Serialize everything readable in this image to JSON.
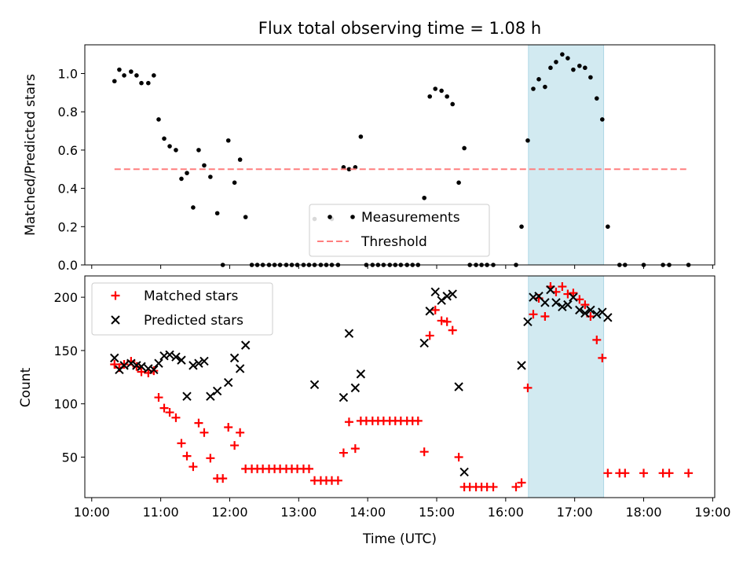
{
  "chart_data": [
    {
      "type": "scatter",
      "title": "Flux total observing time = 1.08 h",
      "xlabel": "",
      "ylabel": "Matched/Predicted stars",
      "xlim": [
        9.9,
        19.03
      ],
      "ylim": [
        0,
        1.15
      ],
      "yticks": [
        0.0,
        0.2,
        0.4,
        0.6,
        0.8,
        1.0
      ],
      "ytick_labels": [
        "0.0",
        "0.2",
        "0.4",
        "0.6",
        "0.8",
        "1.0"
      ],
      "highlight_span": [
        16.33,
        17.42
      ],
      "highlight_color": "#add8e6",
      "legend": {
        "placement": "lower-center"
      },
      "series": [
        {
          "name": "Measurements",
          "marker": "dot",
          "color": "#000000",
          "points": [
            [
              10.33,
              0.96
            ],
            [
              10.4,
              1.02
            ],
            [
              10.47,
              0.99
            ],
            [
              10.57,
              1.01
            ],
            [
              10.65,
              0.99
            ],
            [
              10.72,
              0.95
            ],
            [
              10.82,
              0.95
            ],
            [
              10.9,
              0.99
            ],
            [
              10.97,
              0.76
            ],
            [
              11.05,
              0.66
            ],
            [
              11.13,
              0.62
            ],
            [
              11.22,
              0.6
            ],
            [
              11.3,
              0.45
            ],
            [
              11.38,
              0.48
            ],
            [
              11.47,
              0.3
            ],
            [
              11.55,
              0.6
            ],
            [
              11.63,
              0.52
            ],
            [
              11.72,
              0.46
            ],
            [
              11.82,
              0.27
            ],
            [
              11.9,
              0.0
            ],
            [
              11.98,
              0.65
            ],
            [
              12.07,
              0.43
            ],
            [
              12.15,
              0.55
            ],
            [
              12.23,
              0.25
            ],
            [
              12.32,
              0.0
            ],
            [
              12.4,
              0.0
            ],
            [
              12.48,
              0.0
            ],
            [
              12.57,
              0.0
            ],
            [
              12.65,
              0.0
            ],
            [
              12.73,
              0.0
            ],
            [
              12.82,
              0.0
            ],
            [
              12.9,
              0.0
            ],
            [
              12.98,
              0.0
            ],
            [
              13.07,
              0.0
            ],
            [
              13.15,
              0.0
            ],
            [
              13.23,
              0.0
            ],
            [
              13.23,
              0.24
            ],
            [
              13.32,
              0.0
            ],
            [
              13.4,
              0.0
            ],
            [
              13.48,
              0.0
            ],
            [
              13.48,
              0.24
            ],
            [
              13.57,
              0.0
            ],
            [
              13.65,
              0.51
            ],
            [
              13.73,
              0.5
            ],
            [
              13.82,
              0.51
            ],
            [
              13.9,
              0.67
            ],
            [
              13.98,
              0.0
            ],
            [
              14.07,
              0.0
            ],
            [
              14.15,
              0.0
            ],
            [
              14.23,
              0.0
            ],
            [
              14.32,
              0.0
            ],
            [
              14.4,
              0.0
            ],
            [
              14.48,
              0.0
            ],
            [
              14.57,
              0.0
            ],
            [
              14.65,
              0.0
            ],
            [
              14.73,
              0.0
            ],
            [
              14.82,
              0.35
            ],
            [
              14.9,
              0.88
            ],
            [
              14.98,
              0.92
            ],
            [
              15.07,
              0.91
            ],
            [
              15.15,
              0.88
            ],
            [
              15.23,
              0.84
            ],
            [
              15.32,
              0.43
            ],
            [
              15.4,
              0.61
            ],
            [
              15.48,
              0.0
            ],
            [
              15.57,
              0.0
            ],
            [
              15.65,
              0.0
            ],
            [
              15.73,
              0.0
            ],
            [
              15.82,
              0.0
            ],
            [
              16.15,
              0.0
            ],
            [
              16.23,
              0.2
            ],
            [
              16.32,
              0.65
            ],
            [
              16.4,
              0.92
            ],
            [
              16.48,
              0.97
            ],
            [
              16.57,
              0.93
            ],
            [
              16.65,
              1.03
            ],
            [
              16.73,
              1.06
            ],
            [
              16.82,
              1.1
            ],
            [
              16.9,
              1.08
            ],
            [
              16.98,
              1.02
            ],
            [
              17.07,
              1.04
            ],
            [
              17.15,
              1.03
            ],
            [
              17.23,
              0.98
            ],
            [
              17.32,
              0.87
            ],
            [
              17.4,
              0.76
            ],
            [
              17.48,
              0.2
            ],
            [
              17.65,
              0.0
            ],
            [
              17.73,
              0.0
            ],
            [
              18.0,
              0.0
            ],
            [
              18.28,
              0.0
            ],
            [
              18.37,
              0.0
            ],
            [
              18.65,
              0.0
            ]
          ]
        },
        {
          "name": "Threshold",
          "style": "dashed",
          "color": "#ff7f7f",
          "points": [
            [
              10.33,
              0.5
            ],
            [
              18.65,
              0.5
            ]
          ]
        }
      ]
    },
    {
      "type": "scatter",
      "title": "",
      "xlabel": "Time (UTC)",
      "ylabel": "Count",
      "xlim": [
        9.9,
        19.03
      ],
      "ylim": [
        12,
        220
      ],
      "xticks": [
        10,
        11,
        12,
        13,
        14,
        15,
        16,
        17,
        18,
        19
      ],
      "xtick_labels": [
        "10:00",
        "11:00",
        "12:00",
        "13:00",
        "14:00",
        "15:00",
        "16:00",
        "17:00",
        "18:00",
        "19:00"
      ],
      "yticks": [
        50,
        100,
        150,
        200
      ],
      "ytick_labels": [
        "50",
        "100",
        "150",
        "200"
      ],
      "highlight_span": [
        16.33,
        17.42
      ],
      "highlight_color": "#add8e6",
      "legend": {
        "placement": "upper-left"
      },
      "series": [
        {
          "name": "Matched stars",
          "marker": "plus",
          "color": "#ff0000",
          "points": [
            [
              10.33,
              137
            ],
            [
              10.4,
              134
            ],
            [
              10.47,
              137
            ],
            [
              10.57,
              140
            ],
            [
              10.65,
              135
            ],
            [
              10.72,
              130
            ],
            [
              10.82,
              129
            ],
            [
              10.9,
              131
            ],
            [
              10.97,
              106
            ],
            [
              11.05,
              96
            ],
            [
              11.13,
              92
            ],
            [
              11.22,
              87
            ],
            [
              11.3,
              63
            ],
            [
              11.38,
              51
            ],
            [
              11.47,
              41
            ],
            [
              11.55,
              82
            ],
            [
              11.63,
              73
            ],
            [
              11.72,
              49
            ],
            [
              11.82,
              30
            ],
            [
              11.9,
              30
            ],
            [
              11.98,
              78
            ],
            [
              12.07,
              61
            ],
            [
              12.15,
              73
            ],
            [
              12.23,
              39
            ],
            [
              12.32,
              39
            ],
            [
              12.4,
              39
            ],
            [
              12.48,
              39
            ],
            [
              12.57,
              39
            ],
            [
              12.65,
              39
            ],
            [
              12.73,
              39
            ],
            [
              12.82,
              39
            ],
            [
              12.9,
              39
            ],
            [
              12.98,
              39
            ],
            [
              13.07,
              39
            ],
            [
              13.15,
              39
            ],
            [
              13.23,
              28
            ],
            [
              13.32,
              28
            ],
            [
              13.4,
              28
            ],
            [
              13.48,
              28
            ],
            [
              13.57,
              28
            ],
            [
              13.65,
              54
            ],
            [
              13.73,
              83
            ],
            [
              13.82,
              58
            ],
            [
              13.9,
              84
            ],
            [
              13.98,
              84
            ],
            [
              14.07,
              84
            ],
            [
              14.15,
              84
            ],
            [
              14.23,
              84
            ],
            [
              14.32,
              84
            ],
            [
              14.4,
              84
            ],
            [
              14.48,
              84
            ],
            [
              14.57,
              84
            ],
            [
              14.65,
              84
            ],
            [
              14.73,
              84
            ],
            [
              14.82,
              55
            ],
            [
              14.9,
              164
            ],
            [
              14.98,
              188
            ],
            [
              15.07,
              178
            ],
            [
              15.15,
              177
            ],
            [
              15.23,
              169
            ],
            [
              15.32,
              50
            ],
            [
              15.4,
              22
            ],
            [
              15.48,
              22
            ],
            [
              15.57,
              22
            ],
            [
              15.65,
              22
            ],
            [
              15.73,
              22
            ],
            [
              15.82,
              22
            ],
            [
              16.15,
              22
            ],
            [
              16.23,
              26
            ],
            [
              16.32,
              115
            ],
            [
              16.4,
              184
            ],
            [
              16.48,
              199
            ],
            [
              16.57,
              182
            ],
            [
              16.65,
              210
            ],
            [
              16.73,
              205
            ],
            [
              16.82,
              210
            ],
            [
              16.9,
              203
            ],
            [
              16.98,
              204
            ],
            [
              17.07,
              198
            ],
            [
              17.15,
              193
            ],
            [
              17.23,
              182
            ],
            [
              17.32,
              160
            ],
            [
              17.4,
              143
            ],
            [
              17.48,
              35
            ],
            [
              17.65,
              35
            ],
            [
              17.73,
              35
            ],
            [
              18.0,
              35
            ],
            [
              18.28,
              35
            ],
            [
              18.37,
              35
            ],
            [
              18.65,
              35
            ]
          ]
        },
        {
          "name": "Predicted stars",
          "marker": "x",
          "color": "#000000",
          "points": [
            [
              10.33,
              143
            ],
            [
              10.4,
              132
            ],
            [
              10.47,
              136
            ],
            [
              10.57,
              138
            ],
            [
              10.65,
              136
            ],
            [
              10.72,
              135
            ],
            [
              10.82,
              133
            ],
            [
              10.9,
              132
            ],
            [
              10.97,
              138
            ],
            [
              11.05,
              145
            ],
            [
              11.13,
              146
            ],
            [
              11.22,
              144
            ],
            [
              11.3,
              141
            ],
            [
              11.38,
              107
            ],
            [
              11.47,
              136
            ],
            [
              11.55,
              138
            ],
            [
              11.63,
              140
            ],
            [
              11.72,
              107
            ],
            [
              11.82,
              112
            ],
            [
              11.98,
              120
            ],
            [
              12.07,
              143
            ],
            [
              12.15,
              133
            ],
            [
              12.23,
              155
            ],
            [
              13.23,
              118
            ],
            [
              13.65,
              106
            ],
            [
              13.73,
              166
            ],
            [
              13.82,
              115
            ],
            [
              13.9,
              128
            ],
            [
              14.82,
              157
            ],
            [
              14.9,
              187
            ],
            [
              14.98,
              205
            ],
            [
              15.07,
              197
            ],
            [
              15.15,
              201
            ],
            [
              15.23,
              203
            ],
            [
              15.32,
              116
            ],
            [
              15.4,
              36
            ],
            [
              16.23,
              136
            ],
            [
              16.32,
              177
            ],
            [
              16.4,
              200
            ],
            [
              16.48,
              201
            ],
            [
              16.57,
              195
            ],
            [
              16.65,
              207
            ],
            [
              16.73,
              195
            ],
            [
              16.82,
              191
            ],
            [
              16.9,
              193
            ],
            [
              16.98,
              200
            ],
            [
              17.07,
              188
            ],
            [
              17.15,
              185
            ],
            [
              17.23,
              188
            ],
            [
              17.32,
              184
            ],
            [
              17.4,
              186
            ],
            [
              17.48,
              181
            ]
          ]
        }
      ]
    }
  ]
}
